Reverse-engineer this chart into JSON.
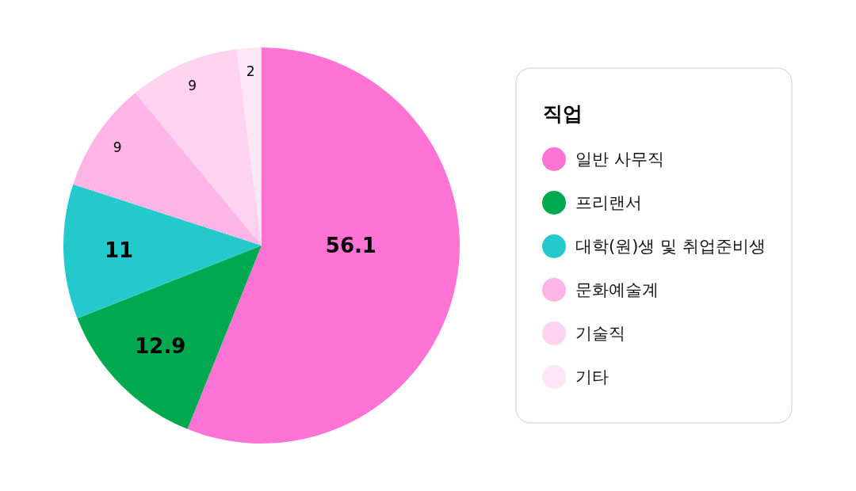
{
  "chart_data": {
    "type": "pie",
    "legend_title": "직업",
    "categories": [
      "일반 사무직",
      "프리랜서",
      "대학(원)생 및 취업준비생",
      "문화예술계",
      "기술직",
      "기타"
    ],
    "values": [
      56.1,
      12.9,
      11,
      9,
      9,
      2
    ],
    "colors": [
      "#ff73d4",
      "#00a94f",
      "#24cacb",
      "#fdb4e6",
      "#fed3f0",
      "#ffe6f6"
    ],
    "data_labels": true,
    "legend": "right"
  }
}
